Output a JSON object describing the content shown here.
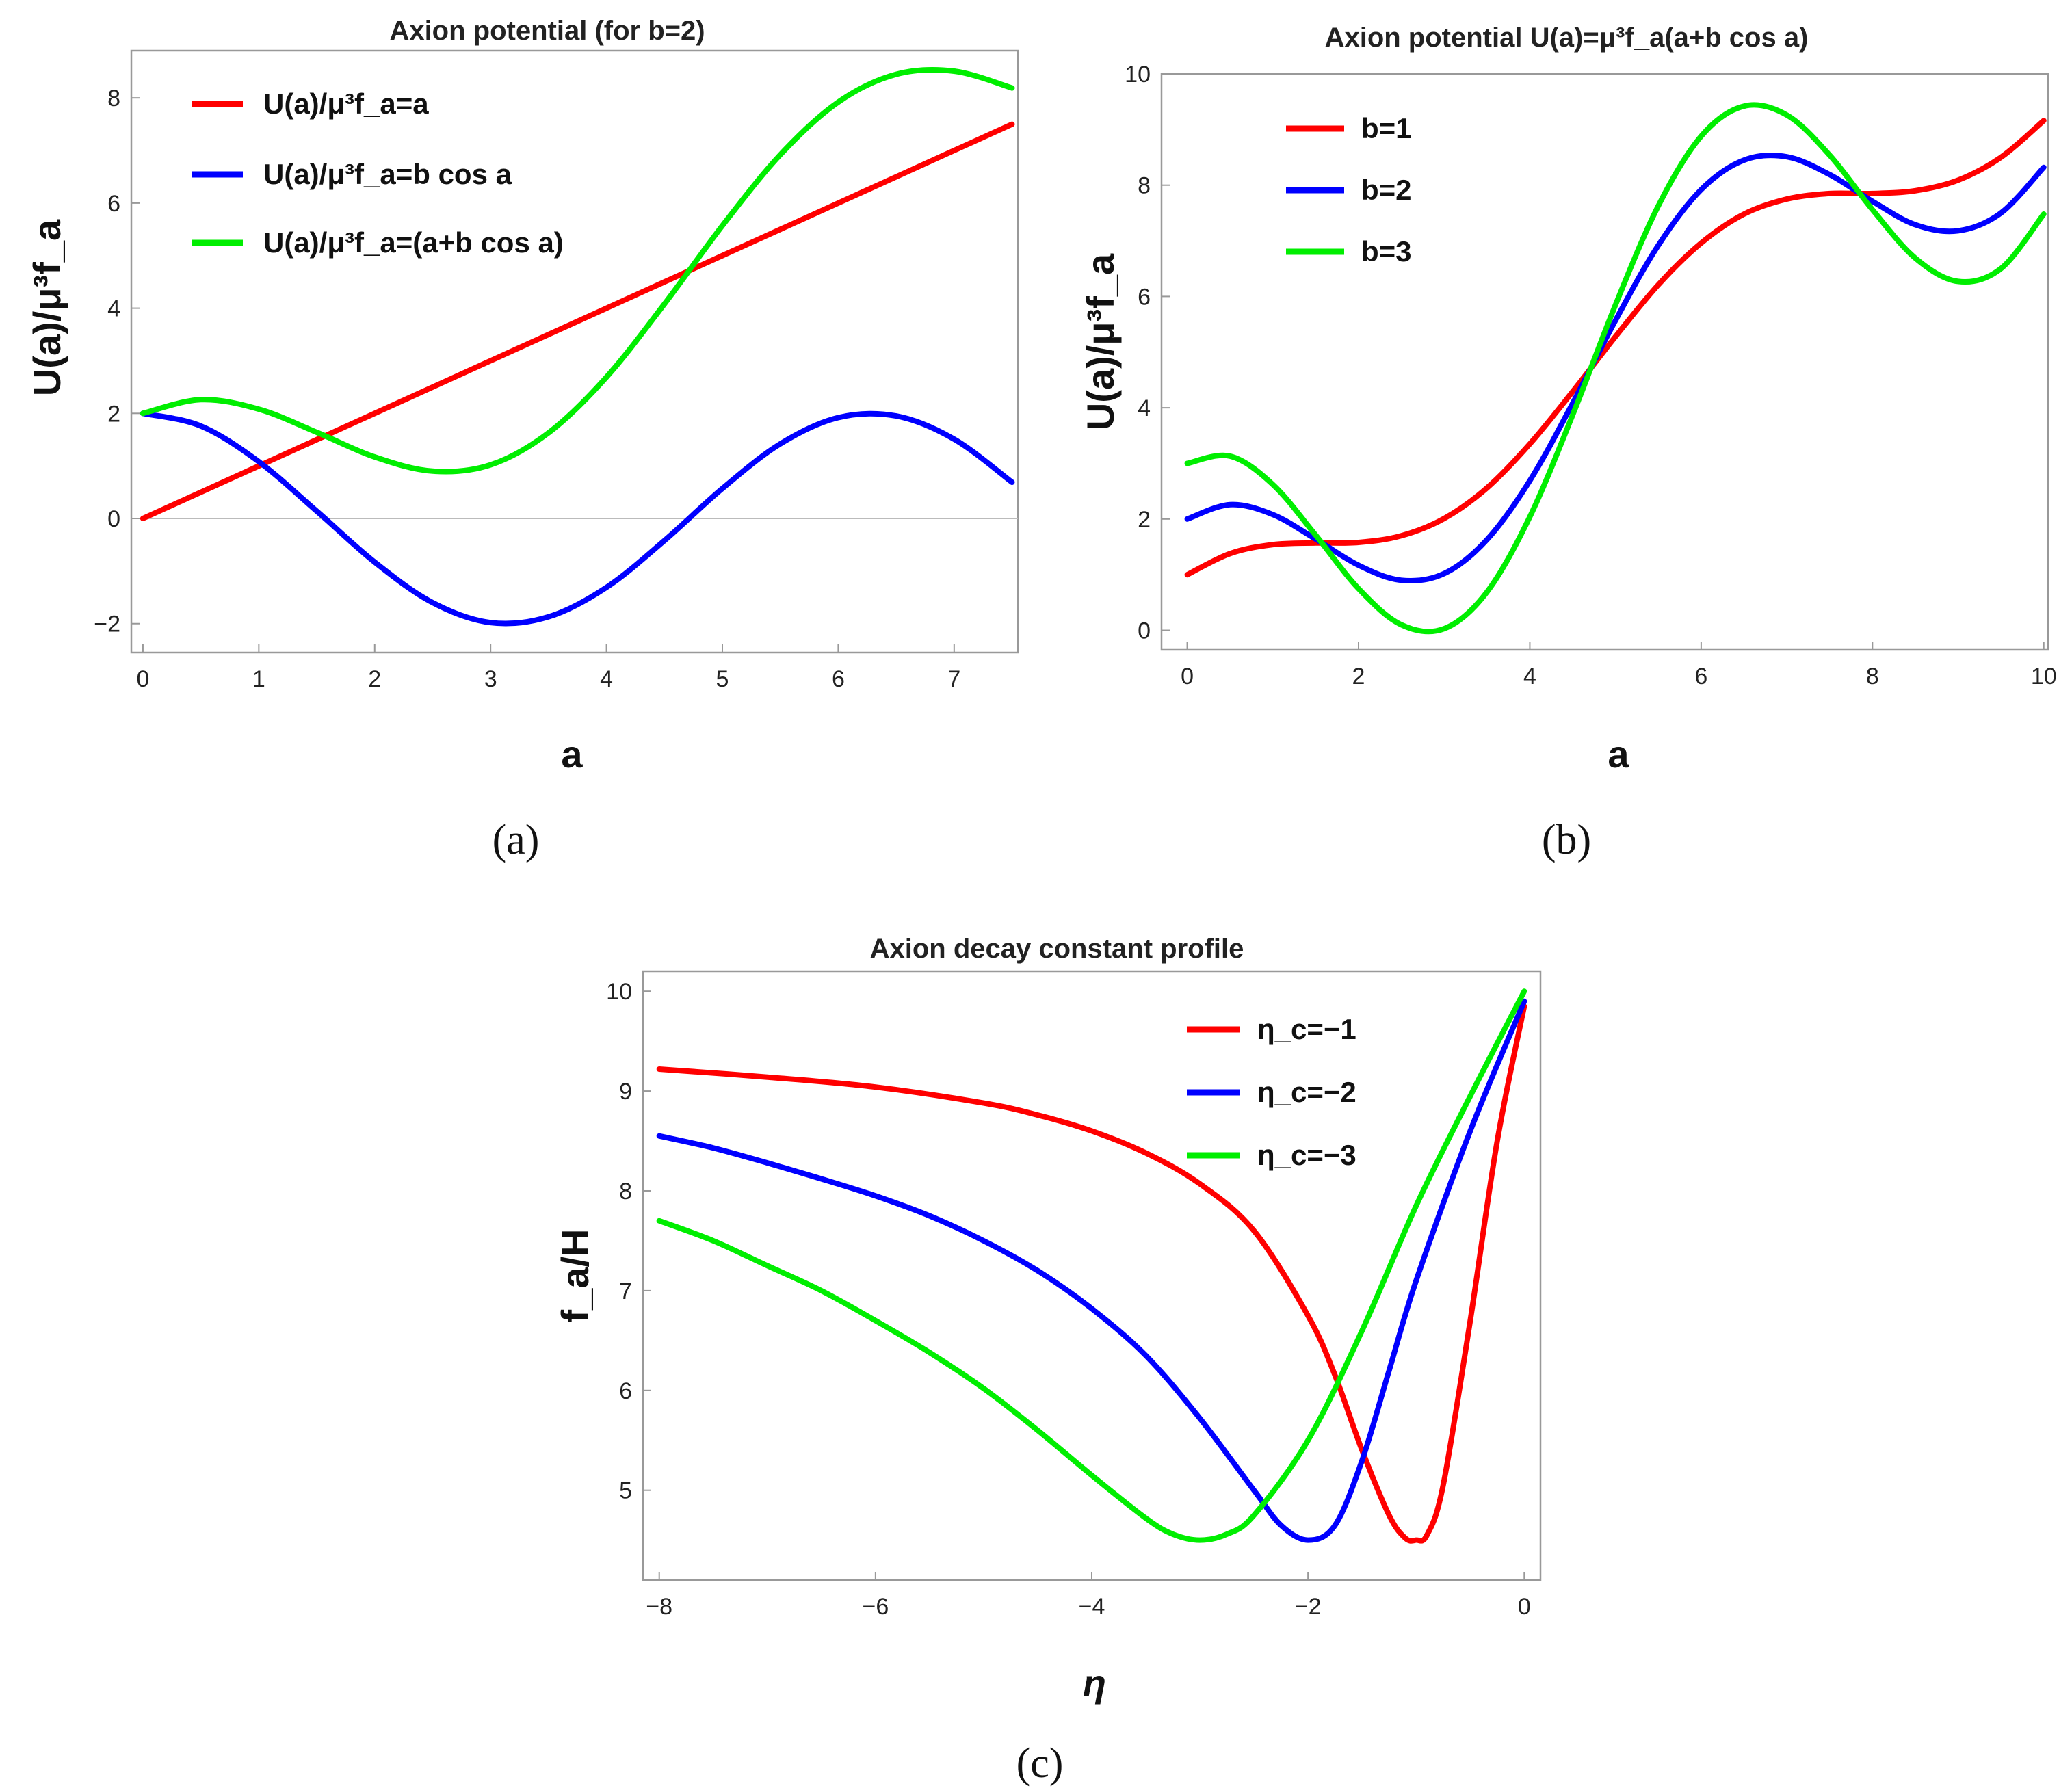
{
  "chart_data": [
    {
      "id": "a",
      "type": "line",
      "title": "Axion potential (for b=2)",
      "xlabel": "a",
      "ylabel": "U(a)/μ³f_a",
      "xlim": [
        -0.1,
        7.55
      ],
      "ylim": [
        -2.55,
        8.9
      ],
      "xticks": [
        0,
        1,
        2,
        3,
        4,
        5,
        6,
        7
      ],
      "yticks": [
        -2,
        0,
        2,
        4,
        6,
        8
      ],
      "caption": "(a)",
      "zero_line": true,
      "legend_position": "top-left",
      "series": [
        {
          "name": "U(a)/μ³f_a=a",
          "color": "#ff0000",
          "x": [
            0,
            0.5,
            1,
            1.5,
            2,
            2.5,
            3,
            3.5,
            4,
            4.5,
            5,
            5.5,
            6,
            6.5,
            7,
            7.5
          ],
          "y": [
            0,
            0.5,
            1,
            1.5,
            2,
            2.5,
            3,
            3.5,
            4,
            4.5,
            5,
            5.5,
            6,
            6.5,
            7,
            7.5
          ]
        },
        {
          "name": "U(a)/μ³f_a=b cos a",
          "color": "#0000ff",
          "x": [
            0,
            0.5,
            1,
            1.5,
            2,
            2.5,
            3,
            3.5,
            4,
            4.5,
            5,
            5.5,
            6,
            6.5,
            7,
            7.5
          ],
          "y": [
            2,
            1.76,
            1.08,
            0.14,
            -0.83,
            -1.6,
            -1.98,
            -1.87,
            -1.31,
            -0.42,
            0.57,
            1.42,
            1.92,
            1.95,
            1.51,
            0.69
          ]
        },
        {
          "name": "U(a)/μ³f_a=(a+b cos a)",
          "color": "#00ee00",
          "x": [
            0,
            0.5,
            1,
            1.5,
            2,
            2.5,
            3,
            3.5,
            4,
            4.5,
            5,
            5.5,
            6,
            6.5,
            7,
            7.5
          ],
          "y": [
            2,
            2.26,
            2.08,
            1.64,
            1.17,
            0.9,
            1.02,
            1.63,
            2.69,
            4.08,
            5.57,
            6.92,
            7.92,
            8.45,
            8.51,
            8.19
          ]
        }
      ]
    },
    {
      "id": "b",
      "type": "line",
      "title": "Axion potential U(a)=μ³f_a(a+b cos a)",
      "xlabel": "a",
      "ylabel": "U(a)/μ³f_a",
      "xlim": [
        -0.3,
        10.05
      ],
      "ylim": [
        -0.35,
        10
      ],
      "xticks": [
        0,
        2,
        4,
        6,
        8,
        10
      ],
      "yticks": [
        0,
        2,
        4,
        6,
        8,
        10
      ],
      "caption": "(b)",
      "legend_position": "top-left",
      "series": [
        {
          "name": "b=1",
          "color": "#ff0000",
          "x": [
            0,
            0.5,
            1,
            1.5,
            2,
            2.5,
            3,
            3.5,
            4,
            4.5,
            5,
            5.5,
            6,
            6.5,
            7,
            7.5,
            8,
            8.5,
            9,
            9.5,
            10
          ],
          "y": [
            1,
            1.38,
            1.54,
            1.57,
            1.58,
            1.7,
            2.01,
            2.56,
            3.35,
            4.29,
            5.28,
            6.21,
            6.96,
            7.48,
            7.75,
            7.85,
            7.85,
            7.9,
            8.09,
            8.5,
            9.16
          ]
        },
        {
          "name": "b=2",
          "color": "#0000ff",
          "x": [
            0,
            0.5,
            1,
            1.5,
            2,
            2.5,
            3,
            3.5,
            4,
            4.5,
            5,
            5.5,
            6,
            6.5,
            7,
            7.5,
            8,
            8.5,
            9,
            9.5,
            10
          ],
          "y": [
            2,
            2.26,
            2.08,
            1.64,
            1.17,
            0.9,
            1.02,
            1.63,
            2.69,
            4.08,
            5.57,
            6.92,
            7.92,
            8.45,
            8.51,
            8.19,
            7.71,
            7.29,
            7.18,
            7.5,
            8.32
          ]
        },
        {
          "name": "b=3",
          "color": "#00ee00",
          "x": [
            0,
            0.5,
            1,
            1.5,
            2,
            2.5,
            3,
            3.5,
            4,
            4.5,
            5,
            5.5,
            6,
            6.5,
            7,
            7.5,
            8,
            8.5,
            9,
            9.5,
            10
          ],
          "y": [
            3,
            3.13,
            2.62,
            1.71,
            0.75,
            0.1,
            0.03,
            0.69,
            2.04,
            3.87,
            5.85,
            7.63,
            8.88,
            9.42,
            9.26,
            8.54,
            7.56,
            6.69,
            6.27,
            6.5,
            7.48
          ]
        }
      ]
    },
    {
      "id": "c",
      "type": "line",
      "title": "Axion decay constant profile",
      "xlabel": "η",
      "ylabel": "f_a/H",
      "xlim": [
        -8.15,
        0.15
      ],
      "ylim": [
        4.1,
        10.2
      ],
      "xticks": [
        -8,
        -6,
        -4,
        -2,
        0
      ],
      "yticks": [
        5,
        6,
        7,
        8,
        9,
        10
      ],
      "caption": "(c)",
      "legend_position": "top-right",
      "series": [
        {
          "name": "η_c=−1",
          "color": "#ff0000",
          "x": [
            -8,
            -7,
            -6,
            -5,
            -4.5,
            -4,
            -3.5,
            -3,
            -2.5,
            -2,
            -1.75,
            -1.5,
            -1.25,
            -1.1,
            -1,
            -0.9,
            -0.75,
            -0.5,
            -0.25,
            0
          ],
          "y": [
            9.22,
            9.14,
            9.04,
            8.88,
            8.76,
            8.6,
            8.38,
            8.07,
            7.6,
            6.75,
            6.15,
            5.4,
            4.75,
            4.52,
            4.5,
            4.55,
            5.05,
            6.7,
            8.5,
            9.85
          ]
        },
        {
          "name": "η_c=−2",
          "color": "#0000ff",
          "x": [
            -8,
            -7.5,
            -7,
            -6.5,
            -6,
            -5.5,
            -5,
            -4.5,
            -4,
            -3.5,
            -3,
            -2.5,
            -2.25,
            -2,
            -1.75,
            -1.5,
            -1.25,
            -1,
            -0.5,
            0
          ],
          "y": [
            8.55,
            8.43,
            8.28,
            8.12,
            7.95,
            7.75,
            7.5,
            7.2,
            6.82,
            6.35,
            5.72,
            5.0,
            4.65,
            4.5,
            4.65,
            5.3,
            6.2,
            7.1,
            8.6,
            9.9
          ]
        },
        {
          "name": "η_c=−3",
          "color": "#00ee00",
          "x": [
            -8,
            -7.5,
            -7,
            -6.5,
            -6,
            -5.5,
            -5,
            -4.5,
            -4,
            -3.5,
            -3.25,
            -3,
            -2.75,
            -2.5,
            -2,
            -1.5,
            -1,
            -0.5,
            0
          ],
          "y": [
            7.7,
            7.5,
            7.25,
            7.0,
            6.7,
            6.38,
            6.02,
            5.6,
            5.15,
            4.72,
            4.56,
            4.5,
            4.56,
            4.75,
            5.5,
            6.6,
            7.85,
            8.95,
            10.0
          ]
        }
      ]
    }
  ]
}
